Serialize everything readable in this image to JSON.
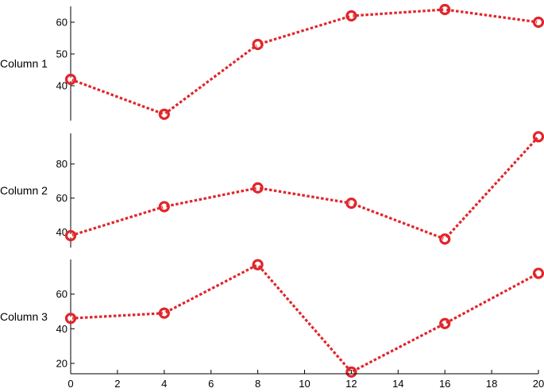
{
  "colors": {
    "series": "#e0262b",
    "marker_inner": "#ffffff",
    "axis": "#000000"
  },
  "chart_data": {
    "type": "line",
    "shared_x": [
      0,
      4,
      8,
      12,
      16,
      20
    ],
    "xlim": [
      0,
      20
    ],
    "x_ticks": [
      0,
      2,
      4,
      6,
      8,
      10,
      12,
      14,
      16,
      18,
      20
    ],
    "line_style": "dotted",
    "marker": "circle",
    "grid": false,
    "panels": [
      {
        "label": "Column 1",
        "ylim": [
          29,
          65
        ],
        "y_ticks": [
          40,
          50,
          60
        ],
        "series": [
          {
            "values": [
              42,
              31,
              53,
              62,
              64,
              60
            ]
          }
        ]
      },
      {
        "label": "Column 2",
        "ylim": [
          31,
          98
        ],
        "y_ticks": [
          40,
          60,
          80
        ],
        "series": [
          {
            "values": [
              38,
              55,
              66,
              57,
              36,
              96
            ]
          }
        ]
      },
      {
        "label": "Column 3",
        "ylim": [
          14,
          80
        ],
        "y_ticks": [
          20,
          40,
          60
        ],
        "series": [
          {
            "values": [
              46,
              49,
              77,
              15,
              43,
              72
            ]
          }
        ]
      }
    ]
  }
}
